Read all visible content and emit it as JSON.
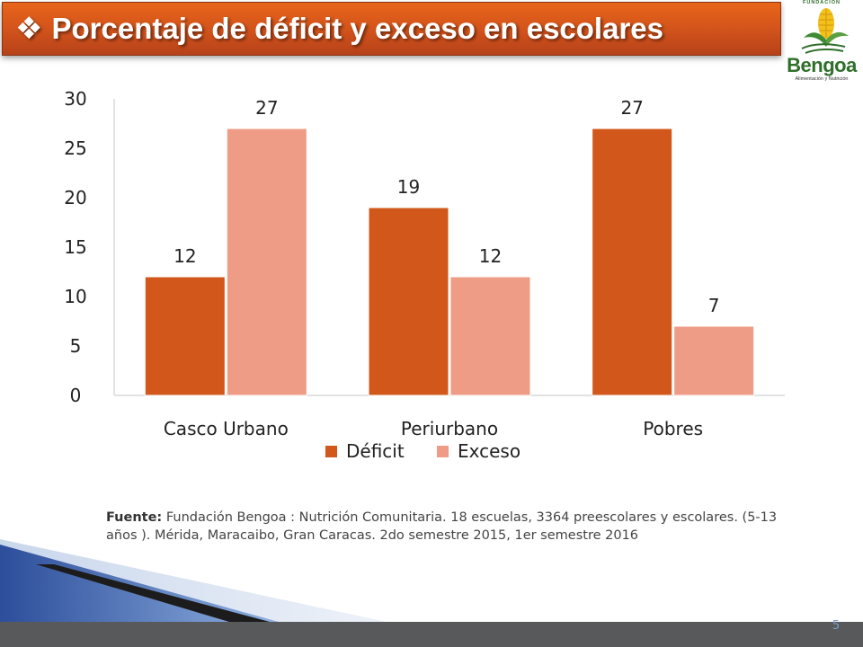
{
  "slide": {
    "title_bullet": "❖",
    "title": "Porcentaje de déficit y exceso en escolares",
    "page_number": "5"
  },
  "logo": {
    "top_text": "FUNDACIÓN",
    "name": "Bengoa",
    "subtitle": "Alimentación y Nutrición"
  },
  "source": {
    "label": "Fuente:",
    "text": "Fundación Bengoa : Nutrición Comunitaria.  18 escuelas, 3364 preescolares y escolares. (5-13 años ). Mérida, Maracaibo, Gran Caracas. 2do semestre 2015, 1er semestre 2016"
  },
  "chart_data": {
    "type": "bar",
    "categories": [
      "Casco Urbano",
      "Periurbano",
      "Pobres"
    ],
    "series": [
      {
        "name": "Déficit",
        "values": [
          12,
          19,
          27
        ],
        "color": "#d1581a"
      },
      {
        "name": "Exceso",
        "values": [
          27,
          12,
          7
        ],
        "color": "#ef9c87"
      }
    ],
    "ylim": [
      0,
      30
    ],
    "yticks": [
      "0",
      "5",
      "10",
      "15",
      "20",
      "25",
      "30"
    ],
    "data_labels": true,
    "legend": "bottom",
    "grid": false
  }
}
